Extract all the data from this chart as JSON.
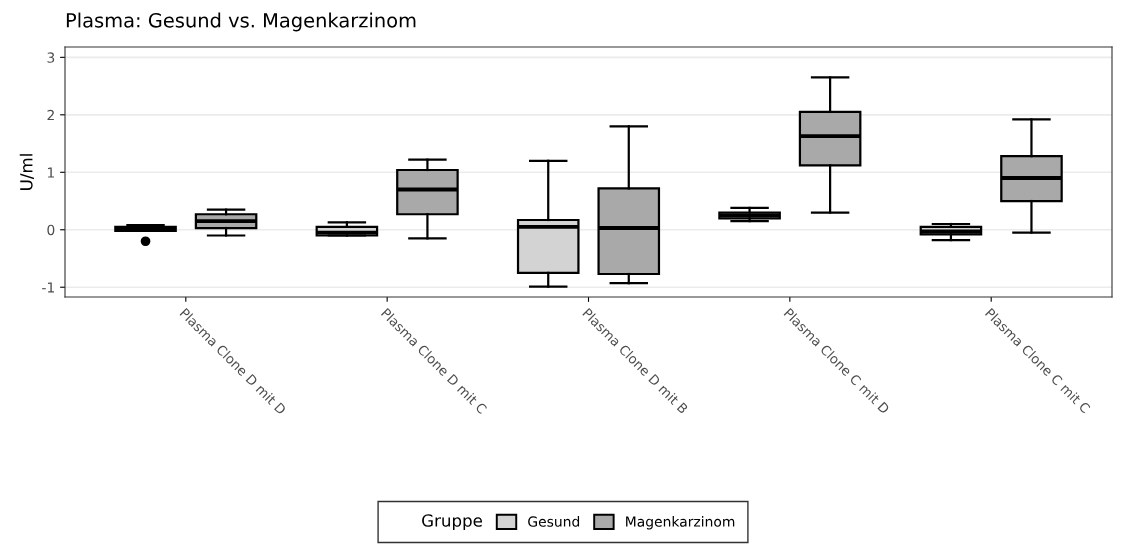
{
  "chart_data": {
    "type": "box",
    "title": "Plasma: Gesund vs. Magenkarzinom",
    "ylabel": "U/ml",
    "legend_title": "Gruppe",
    "categories": [
      "Plasma Clone D mit D",
      "Plasma Clone D mit C",
      "Plasma Clone D mit B",
      "Plasma Clone C mit D",
      "Plasma Clone C mit C"
    ],
    "series": [
      {
        "name": "Gesund",
        "color": "#d3d3d3",
        "boxes": [
          {
            "low": -0.02,
            "q1": -0.02,
            "median": 0.0,
            "q3": 0.05,
            "high": 0.08,
            "outliers": [
              -0.2
            ]
          },
          {
            "low": -0.1,
            "q1": -0.1,
            "median": -0.05,
            "q3": 0.05,
            "high": 0.13
          },
          {
            "low": -0.99,
            "q1": -0.75,
            "median": 0.05,
            "q3": 0.17,
            "high": 1.2
          },
          {
            "low": 0.15,
            "q1": 0.2,
            "median": 0.25,
            "q3": 0.3,
            "high": 0.38
          },
          {
            "low": -0.18,
            "q1": -0.08,
            "median": -0.03,
            "q3": 0.05,
            "high": 0.1
          }
        ]
      },
      {
        "name": "Magenkarzinom",
        "color": "#a9a9a9",
        "boxes": [
          {
            "low": -0.1,
            "q1": 0.03,
            "median": 0.15,
            "q3": 0.27,
            "high": 0.35
          },
          {
            "low": -0.15,
            "q1": 0.27,
            "median": 0.7,
            "q3": 1.04,
            "high": 1.22
          },
          {
            "low": -0.93,
            "q1": -0.77,
            "median": 0.03,
            "q3": 0.72,
            "high": 1.8
          },
          {
            "low": 0.3,
            "q1": 1.12,
            "median": 1.63,
            "q3": 2.05,
            "high": 2.65
          },
          {
            "low": -0.05,
            "q1": 0.5,
            "median": 0.9,
            "q3": 1.28,
            "high": 1.92
          }
        ]
      }
    ],
    "ylim": [
      -1.17,
      3.18
    ],
    "yticks": [
      -1,
      0,
      1,
      2,
      3
    ],
    "grid": "y",
    "legend": "bottom"
  }
}
